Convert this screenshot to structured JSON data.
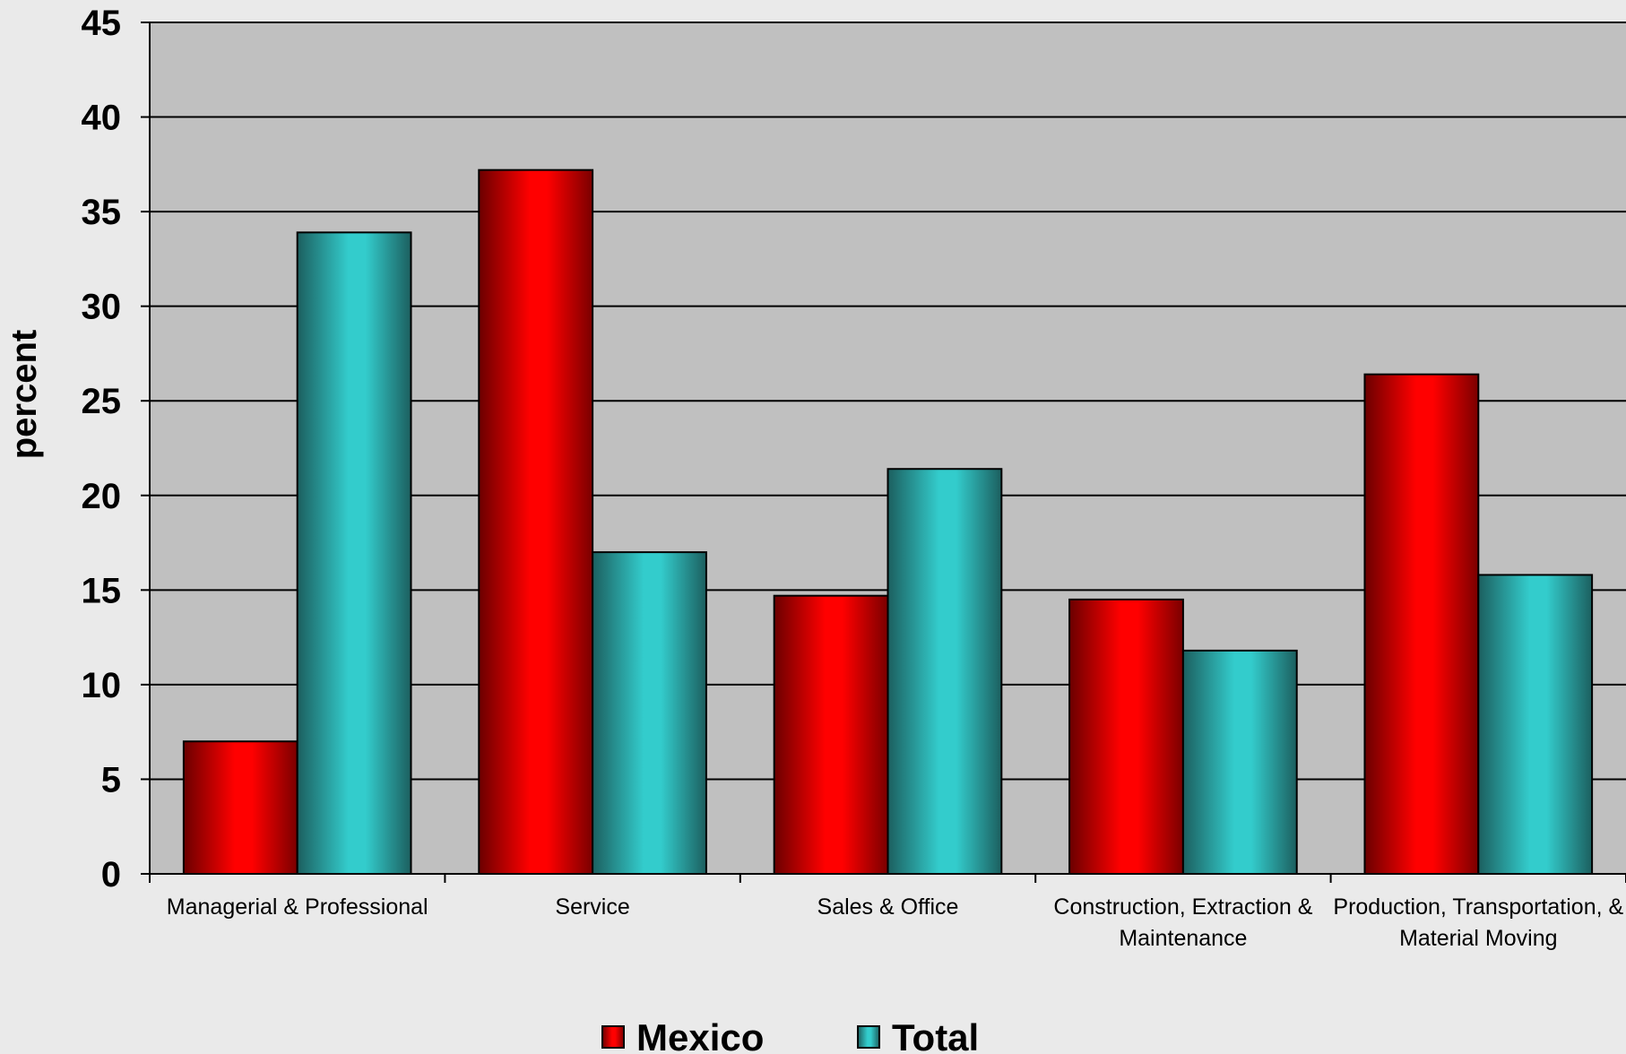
{
  "chart_data": {
    "type": "bar",
    "title": "",
    "xlabel": "",
    "ylabel": "percent",
    "ylim": [
      0,
      45
    ],
    "yticks": [
      0,
      5,
      10,
      15,
      20,
      25,
      30,
      35,
      40,
      45
    ],
    "grid": true,
    "legend_position": "bottom-center",
    "categories": [
      [
        "Managerial & Professional"
      ],
      [
        "Service"
      ],
      [
        "Sales & Office"
      ],
      [
        "Construction, Extraction &",
        "Maintenance"
      ],
      [
        "Production, Transportation, &",
        "Material Moving"
      ]
    ],
    "series": [
      {
        "name": "Mexico",
        "color": "#ff0000",
        "values": [
          7.0,
          37.2,
          14.7,
          14.5,
          26.4
        ]
      },
      {
        "name": "Total",
        "color": "#33cccc",
        "values": [
          33.9,
          17.0,
          21.4,
          11.8,
          15.8
        ]
      }
    ],
    "colors": {
      "page_background": "#eaeaea",
      "plot_background": "#c0c0c0",
      "gridline": "#000000"
    }
  }
}
